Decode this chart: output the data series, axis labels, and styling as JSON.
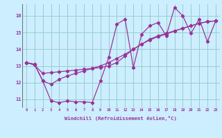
{
  "xlabel": "Windchill (Refroidissement éolien,°C)",
  "x_values": [
    0,
    1,
    2,
    3,
    4,
    5,
    6,
    7,
    8,
    9,
    10,
    11,
    12,
    13,
    14,
    15,
    16,
    17,
    18,
    19,
    20,
    21,
    22,
    23
  ],
  "line1_y": [
    13.2,
    13.1,
    12.1,
    10.9,
    10.8,
    10.9,
    10.85,
    10.85,
    10.8,
    12.1,
    13.5,
    15.5,
    15.8,
    12.9,
    14.9,
    15.4,
    15.6,
    14.8,
    16.5,
    16.0,
    14.95,
    15.8,
    14.45,
    15.7
  ],
  "line2_y": [
    13.2,
    13.05,
    12.55,
    12.6,
    12.65,
    12.7,
    12.75,
    12.8,
    12.85,
    12.9,
    13.0,
    13.2,
    13.6,
    14.0,
    14.3,
    14.6,
    14.8,
    14.95,
    15.1,
    15.25,
    15.4,
    15.55,
    15.65,
    15.7
  ],
  "line3_y": [
    13.2,
    13.1,
    12.1,
    11.9,
    12.2,
    12.4,
    12.55,
    12.7,
    12.85,
    13.0,
    13.2,
    13.45,
    13.7,
    14.0,
    14.3,
    14.55,
    14.75,
    14.9,
    15.1,
    15.25,
    15.4,
    15.55,
    15.65,
    15.7
  ],
  "bg_color": "#cceeff",
  "line_color": "#993399",
  "grid_color": "#99cccc",
  "ylim": [
    10.5,
    16.7
  ],
  "xlim": [
    -0.5,
    23.5
  ],
  "yticks": [
    11,
    12,
    13,
    14,
    15,
    16
  ],
  "xticks": [
    0,
    1,
    2,
    3,
    4,
    5,
    6,
    7,
    8,
    9,
    10,
    11,
    12,
    13,
    14,
    15,
    16,
    17,
    18,
    19,
    20,
    21,
    22,
    23
  ]
}
